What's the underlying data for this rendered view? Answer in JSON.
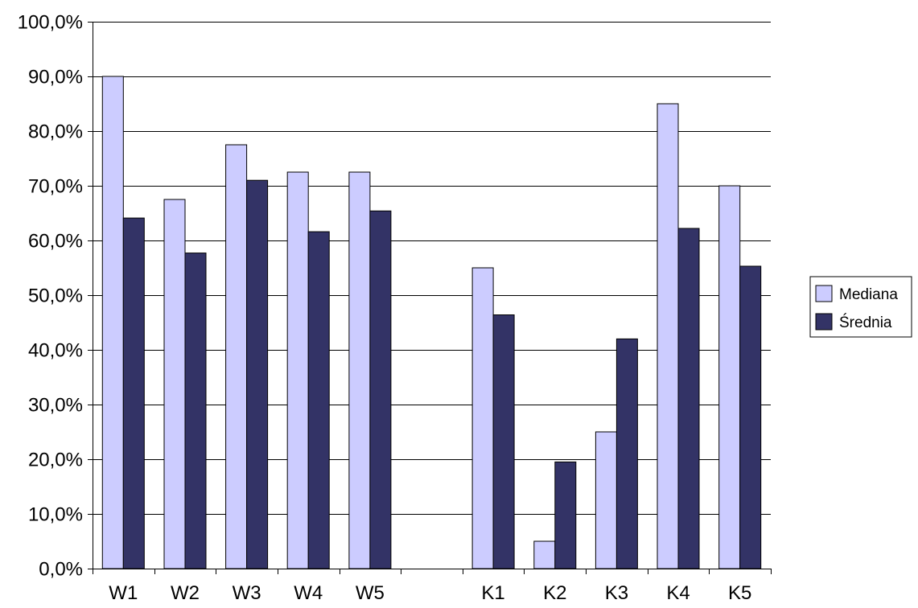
{
  "chart_data": {
    "type": "bar",
    "title": "",
    "xlabel": "",
    "ylabel": "",
    "categories": [
      "W1",
      "W2",
      "W3",
      "W4",
      "W5",
      "",
      "K1",
      "K2",
      "K3",
      "K4",
      "K5"
    ],
    "series": [
      {
        "name": "Mediana",
        "color": "#ccccff",
        "values": [
          90.0,
          67.5,
          77.5,
          72.5,
          72.5,
          null,
          55.0,
          5.0,
          25.0,
          85.0,
          70.0
        ]
      },
      {
        "name": "Średnia",
        "color": "#333366",
        "values": [
          64.1,
          57.7,
          71.0,
          61.6,
          65.4,
          null,
          46.4,
          19.5,
          42.0,
          62.2,
          55.3
        ]
      }
    ],
    "ylim": [
      0,
      100
    ],
    "y_ticks": [
      "0,0%",
      "10,0%",
      "20,0%",
      "30,0%",
      "40,0%",
      "50,0%",
      "60,0%",
      "70,0%",
      "80,0%",
      "90,0%",
      "100,0%"
    ],
    "y_tick_values": [
      0,
      10,
      20,
      30,
      40,
      50,
      60,
      70,
      80,
      90,
      100
    ],
    "grid": true,
    "legend_position": "right"
  }
}
